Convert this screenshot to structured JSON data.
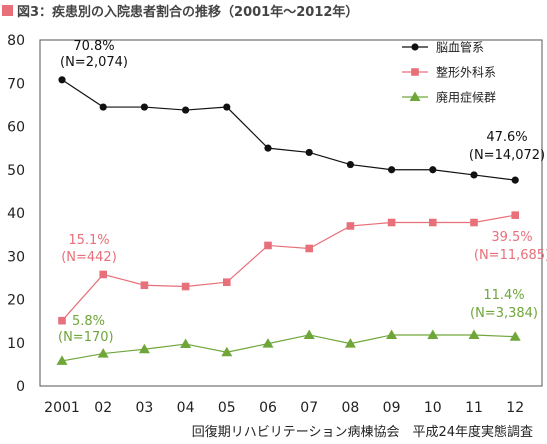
{
  "title": "図3：疾患別の入院患者割合の推移（2001年～2012年）",
  "source": "回復期リハビリテーション病棟協会　平成24年度実態調査",
  "colors": {
    "title_marker": "#e8707a",
    "brain": "#111111",
    "ortho": "#e8707a",
    "disuse": "#6fa63a"
  },
  "chart_data": {
    "type": "line",
    "categories": [
      "2001",
      "02",
      "03",
      "04",
      "05",
      "06",
      "07",
      "08",
      "09",
      "10",
      "11",
      "12"
    ],
    "ylim": [
      0,
      80
    ],
    "yticks": [
      "0",
      "10",
      "20",
      "30",
      "40",
      "50",
      "60",
      "70",
      "80"
    ],
    "grid": false,
    "legend_position": "top-right",
    "series": [
      {
        "name": "脳血管系",
        "marker": "circle",
        "values": [
          70.8,
          64.5,
          64.5,
          63.8,
          64.5,
          55.0,
          54.0,
          51.2,
          50.0,
          50.0,
          48.8,
          47.6
        ]
      },
      {
        "name": "整形外科系",
        "marker": "square",
        "values": [
          15.1,
          25.8,
          23.3,
          23.0,
          24.0,
          32.5,
          31.8,
          37.0,
          37.8,
          37.8,
          37.8,
          39.5
        ]
      },
      {
        "name": "廃用症候群",
        "marker": "triangle",
        "values": [
          5.8,
          7.5,
          8.5,
          9.7,
          7.8,
          9.8,
          11.8,
          9.8,
          11.8,
          11.8,
          11.8,
          11.4
        ]
      }
    ],
    "annotations": [
      {
        "series": "脳血管系",
        "line1": "70.8%",
        "line2": "(N=2,074)"
      },
      {
        "series": "脳血管系",
        "line1": "47.6%",
        "line2": "(N=14,072)"
      },
      {
        "series": "整形外科系",
        "line1": "15.1%",
        "line2": "(N=442)"
      },
      {
        "series": "整形外科系",
        "line1": "39.5%",
        "line2": "(N=11,685)"
      },
      {
        "series": "廃用症候群",
        "line1": "5.8%",
        "line2": "(N=170)"
      },
      {
        "series": "廃用症候群",
        "line1": "11.4%",
        "line2": "(N=3,384)"
      }
    ]
  }
}
